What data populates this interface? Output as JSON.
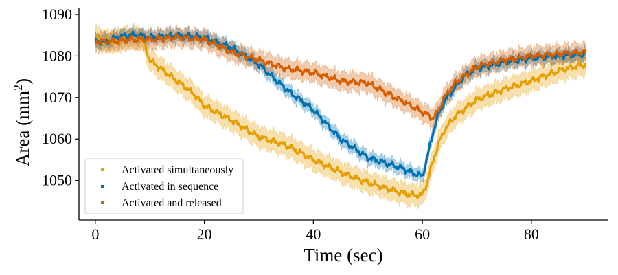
{
  "chart_data": {
    "type": "line",
    "title": "",
    "xlabel": "Time (sec)",
    "ylabel_base": "Area (mm",
    "ylabel_sup": "2",
    "ylabel_tail": ")",
    "xlim": [
      -3,
      94
    ],
    "ylim": [
      1040.5,
      1091.5
    ],
    "xticks": [
      0,
      20,
      40,
      60,
      80
    ],
    "yticks": [
      1050,
      1060,
      1070,
      1080,
      1090
    ],
    "grid": false,
    "legend_position": "lower-left",
    "series": [
      {
        "name": "Activated simultaneously",
        "color": "#E69F00",
        "band_width": 2.5,
        "x": [
          0,
          2,
          4,
          6,
          8,
          9,
          10,
          12,
          15,
          18,
          20,
          25,
          30,
          35,
          40,
          45,
          50,
          55,
          58,
          60,
          61,
          62,
          63,
          64,
          66,
          68,
          70,
          75,
          80,
          85,
          90
        ],
        "values": [
          1084.5,
          1083.5,
          1084,
          1084.5,
          1084.5,
          1083,
          1079,
          1077,
          1074,
          1071,
          1068,
          1064.5,
          1060.5,
          1058.5,
          1055,
          1052,
          1049.5,
          1047.5,
          1046.5,
          1046.5,
          1050,
          1055,
          1059,
          1062,
          1065.5,
          1067.5,
          1069.5,
          1072,
          1074,
          1076.5,
          1078
        ]
      },
      {
        "name": "Activated in sequence",
        "color": "#0072B2",
        "band_width": 1.5,
        "x": [
          0,
          2,
          4,
          6,
          8,
          10,
          15,
          20,
          25,
          30,
          35,
          40,
          45,
          50,
          55,
          58,
          60,
          61,
          62,
          63,
          64,
          66,
          68,
          70,
          75,
          80,
          85,
          90
        ],
        "values": [
          1083.5,
          1083.5,
          1084.5,
          1085,
          1085,
          1084.5,
          1085,
          1084.5,
          1082,
          1078,
          1072,
          1067,
          1060,
          1055.5,
          1053.5,
          1052,
          1051,
          1056,
          1062,
          1066,
          1069,
          1072.5,
          1075.5,
          1077,
          1078.5,
          1079.5,
          1080,
          1080.5
        ]
      },
      {
        "name": "Activated and released",
        "color": "#D55E00",
        "band_width": 2.2,
        "x": [
          0,
          2,
          4,
          6,
          8,
          10,
          15,
          20,
          25,
          30,
          35,
          40,
          45,
          50,
          55,
          58,
          60,
          62,
          63,
          64,
          66,
          68,
          70,
          75,
          80,
          85,
          90
        ],
        "values": [
          1083.5,
          1083.5,
          1083.5,
          1084,
          1084,
          1084,
          1084.5,
          1084,
          1081,
          1079,
          1077,
          1076,
          1074,
          1073.5,
          1070,
          1068,
          1066.5,
          1065,
          1067,
          1070,
          1073.5,
          1075.5,
          1077.5,
          1079,
          1080,
          1080.5,
          1081
        ]
      }
    ]
  }
}
